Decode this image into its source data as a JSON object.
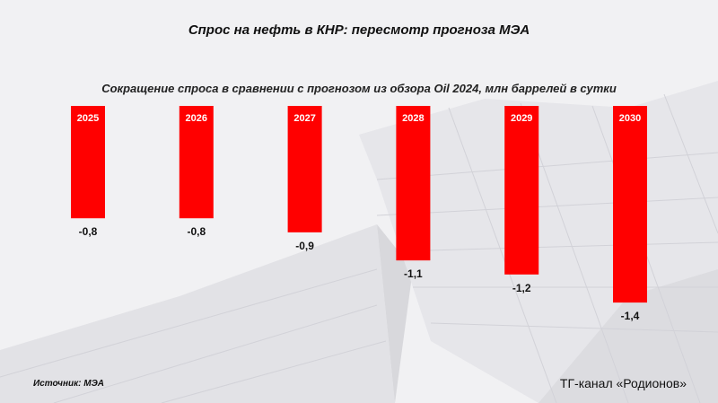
{
  "title": "Спрос на нефть в КНР: пересмотр прогноза МЭА",
  "subtitle": "Сокращение спроса в сравнении с прогнозом из обзора Oil 2024, млн баррелей в сутки",
  "source": "Источник: МЭА",
  "brand": "ТГ-канал «Родионов»",
  "colors": {
    "bar": "#ff0000",
    "category_label": "#ffffff",
    "value_label": "#111111"
  },
  "chart_data": {
    "type": "bar",
    "title": "Сокращение спроса в сравнении с прогнозом из обзора Oil 2024, млн баррелей в сутки",
    "categories": [
      "2025",
      "2026",
      "2027",
      "2028",
      "2029",
      "2030"
    ],
    "values": [
      -0.8,
      -0.8,
      -0.9,
      -1.1,
      -1.2,
      -1.4
    ],
    "value_labels": [
      "-0,8",
      "-0,8",
      "-0,9",
      "-1,1",
      "-1,2",
      "-1,4"
    ],
    "ylim": [
      -1.4,
      0
    ],
    "grid": false,
    "legend": "none"
  }
}
